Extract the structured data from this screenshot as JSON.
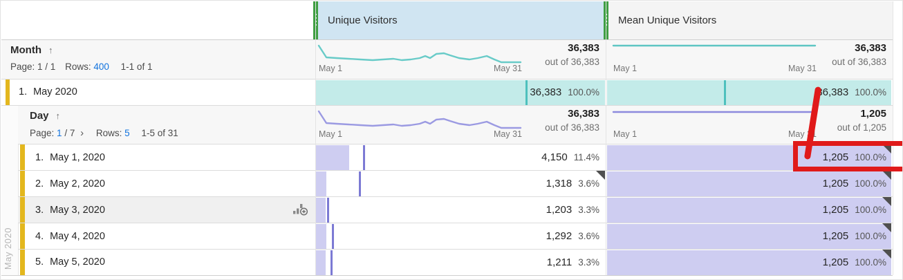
{
  "metric_columns": [
    {
      "label": "Unique Visitors"
    },
    {
      "label": "Mean Unique Visitors"
    }
  ],
  "month_section": {
    "dimension": "Month",
    "sort_arrow": "↑",
    "pagination": {
      "page_label": "Page:",
      "page_info": "1 / 1",
      "rows_label": "Rows:",
      "rows_link": "400",
      "range": "1-1 of 1"
    },
    "uv_sparkline": {
      "left_label": "May 1",
      "right_label": "May 31",
      "value": "36,383",
      "out_of": "out of 36,383"
    },
    "mean_sparkline": {
      "left_label": "May 1",
      "right_label": "May 31",
      "value": "36,383",
      "out_of": "out of 36,383"
    },
    "row": {
      "index": "1.",
      "label": "May 2020",
      "uv": {
        "value": "36,383",
        "pct": "100.0%",
        "bar_pct": 100,
        "tick_pct": 72.5
      },
      "mean": {
        "value": "36,383",
        "pct": "100.0%",
        "bar_pct": 100,
        "tick_pct": 41
      }
    }
  },
  "day_section": {
    "gutter_label": "May 2020",
    "dimension": "Day",
    "sort_arrow": "↑",
    "pagination": {
      "page_label": "Page:",
      "page_link": "1",
      "page_total": "/ 7",
      "next_chevron": "›",
      "rows_label": "Rows:",
      "rows_link": "5",
      "range": "1-5 of 31"
    },
    "uv_sparkline": {
      "left_label": "May 1",
      "right_label": "May 31",
      "value": "36,383",
      "out_of": "out of 36,383"
    },
    "mean_sparkline": {
      "left_label": "May 1",
      "right_label": "May 31",
      "value": "1,205",
      "out_of": "out of 1,205"
    },
    "rows": [
      {
        "index": "1.",
        "label": "May 1, 2020",
        "uv": {
          "value": "4,150",
          "pct": "11.4%",
          "bar_pct": 11.4,
          "tick_pct": 16.2,
          "anomaly": false
        },
        "mean": {
          "value": "1,205",
          "pct": "100.0%",
          "bar_pct": 100,
          "anomaly": true
        }
      },
      {
        "index": "2.",
        "label": "May 2, 2020",
        "uv": {
          "value": "1,318",
          "pct": "3.6%",
          "bar_pct": 3.6,
          "tick_pct": 14.8,
          "anomaly": true
        },
        "mean": {
          "value": "1,205",
          "pct": "100.0%",
          "bar_pct": 100,
          "anomaly": true
        }
      },
      {
        "index": "3.",
        "label": "May 3, 2020",
        "uv": {
          "value": "1,203",
          "pct": "3.3%",
          "bar_pct": 3.3,
          "tick_pct": 3.8,
          "anomaly": false
        },
        "mean": {
          "value": "1,205",
          "pct": "100.0%",
          "bar_pct": 100,
          "anomaly": true
        }
      },
      {
        "index": "4.",
        "label": "May 4, 2020",
        "uv": {
          "value": "1,292",
          "pct": "3.6%",
          "bar_pct": 3.6,
          "tick_pct": 5.5,
          "anomaly": false
        },
        "mean": {
          "value": "1,205",
          "pct": "100.0%",
          "bar_pct": 100,
          "anomaly": true
        }
      },
      {
        "index": "5.",
        "label": "May 5, 2020",
        "uv": {
          "value": "1,211",
          "pct": "3.3%",
          "bar_pct": 3.3,
          "tick_pct": 5.0,
          "anomaly": false
        },
        "mean": {
          "value": "1,205",
          "pct": "100.0%",
          "bar_pct": 100,
          "anomaly": true
        }
      }
    ]
  },
  "colors": {
    "uv_header_bg": "#d0e5f2",
    "mean_header_bg": "#f4f4f4",
    "uv_bar": "#c3ebe9",
    "uv_tick": "#4ec0bd",
    "uv_sparkline": "#68cbc8",
    "day_bar": "#cecdf1",
    "day_tick": "#7c7ad4",
    "day_sparkline": "#9b9ae2",
    "row_accent_yellow": "#e3b71e",
    "column_handle_green": "#3f9e43",
    "link_blue": "#1273de",
    "anomaly_triangle": "#4f4f4f",
    "annotation_red": "#e01a1a"
  }
}
